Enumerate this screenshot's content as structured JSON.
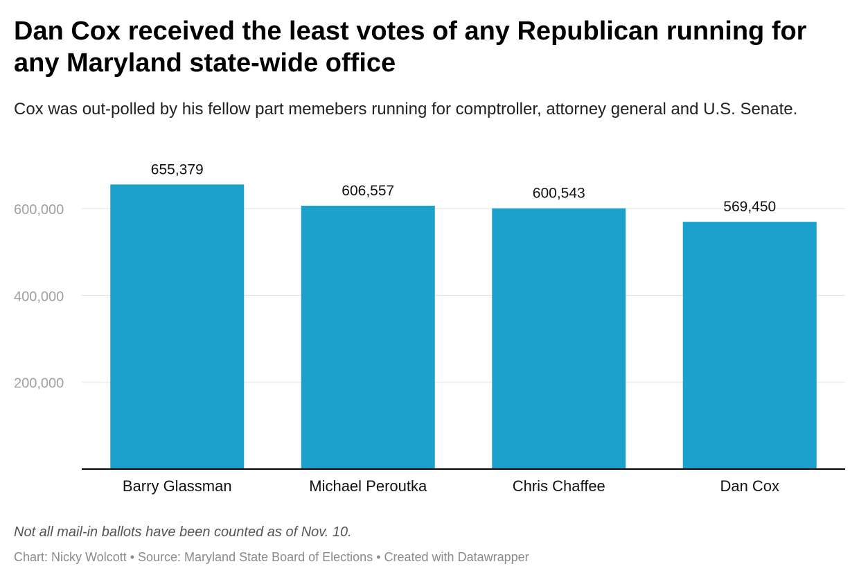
{
  "title": "Dan Cox received the least votes of any Republican running for any Maryland state-wide office",
  "subtitle": "Cox was out-polled by his fellow part memebers running for comptroller, attorney general and U.S. Senate.",
  "note": "Not all mail-in ballots have been counted as of Nov. 10.",
  "footer": {
    "chart_by": "Chart: Nicky Wolcott",
    "source": "Source: Maryland State Board of Elections",
    "created": "Created with Datawrapper",
    "separator": " • "
  },
  "colors": {
    "bar": "#1ba1cc",
    "grid": "#e0e0e0",
    "axis": "#000000",
    "tick_label": "#a0a0a0"
  },
  "chart_data": {
    "type": "bar",
    "categories": [
      "Barry Glassman",
      "Michael Peroutka",
      "Chris Chaffee",
      "Dan Cox"
    ],
    "values": [
      655379,
      606557,
      600543,
      569450
    ],
    "value_labels": [
      "655,379",
      "606,557",
      "600,543",
      "569,450"
    ],
    "yticks": [
      200000,
      400000,
      600000
    ],
    "ytick_labels": [
      "200,000",
      "400,000",
      "600,000"
    ],
    "ylim": [
      0,
      700000
    ],
    "grid": true
  }
}
